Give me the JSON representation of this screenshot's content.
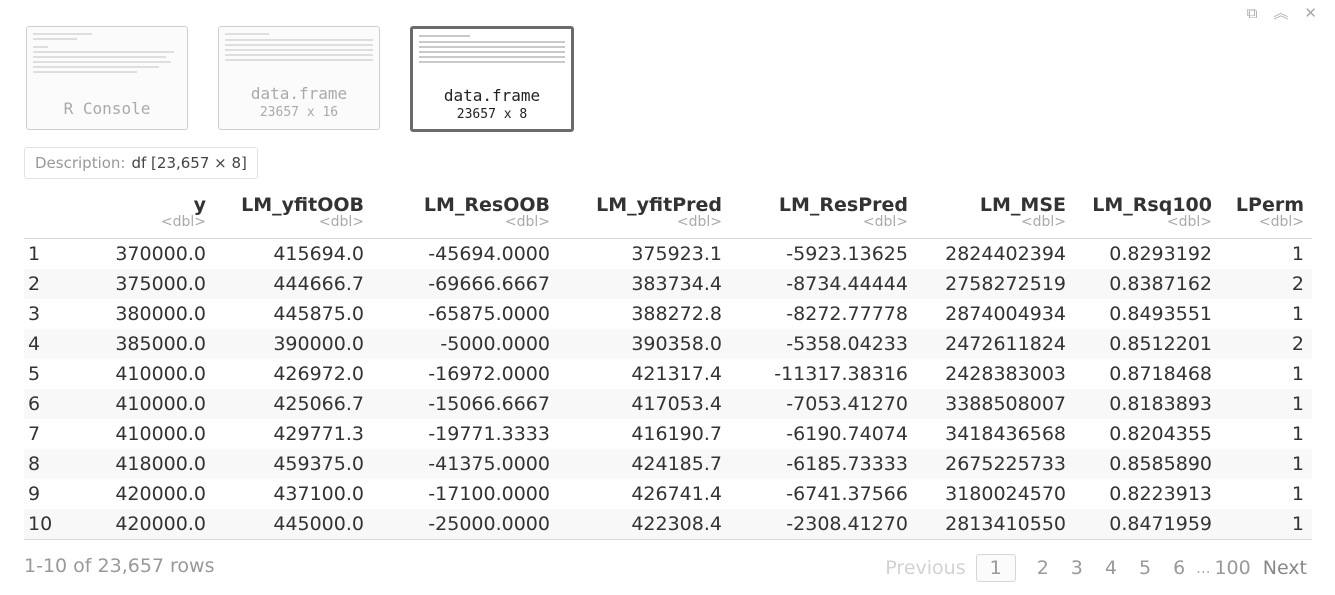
{
  "window_icons": {
    "popout": "⧉",
    "collapse": "︽",
    "close": "✕"
  },
  "thumbnails": [
    {
      "title": "R Console",
      "subtitle": ""
    },
    {
      "title": "data.frame",
      "subtitle": "23657 x 16"
    },
    {
      "title": "data.frame",
      "subtitle": "23657 x 8"
    }
  ],
  "description": {
    "label": "Description:",
    "value": "df [23,657 × 8]"
  },
  "table": {
    "columns": [
      {
        "name": "",
        "type": ""
      },
      {
        "name": "y",
        "type": "<dbl>"
      },
      {
        "name": "LM_yfitOOB",
        "type": "<dbl>"
      },
      {
        "name": "LM_ResOOB",
        "type": "<dbl>"
      },
      {
        "name": "LM_yfitPred",
        "type": "<dbl>"
      },
      {
        "name": "LM_ResPred",
        "type": "<dbl>"
      },
      {
        "name": "LM_MSE",
        "type": "<dbl>"
      },
      {
        "name": "LM_Rsq100",
        "type": "<dbl>"
      },
      {
        "name": "LPerm",
        "type": "<dbl>"
      }
    ],
    "rows": [
      [
        "1",
        "370000.0",
        "415694.0",
        "-45694.0000",
        "375923.1",
        "-5923.13625",
        "2824402394",
        "0.8293192",
        "1"
      ],
      [
        "2",
        "375000.0",
        "444666.7",
        "-69666.6667",
        "383734.4",
        "-8734.44444",
        "2758272519",
        "0.8387162",
        "2"
      ],
      [
        "3",
        "380000.0",
        "445875.0",
        "-65875.0000",
        "388272.8",
        "-8272.77778",
        "2874004934",
        "0.8493551",
        "1"
      ],
      [
        "4",
        "385000.0",
        "390000.0",
        "-5000.0000",
        "390358.0",
        "-5358.04233",
        "2472611824",
        "0.8512201",
        "2"
      ],
      [
        "5",
        "410000.0",
        "426972.0",
        "-16972.0000",
        "421317.4",
        "-11317.38316",
        "2428383003",
        "0.8718468",
        "1"
      ],
      [
        "6",
        "410000.0",
        "425066.7",
        "-15066.6667",
        "417053.4",
        "-7053.41270",
        "3388508007",
        "0.8183893",
        "1"
      ],
      [
        "7",
        "410000.0",
        "429771.3",
        "-19771.3333",
        "416190.7",
        "-6190.74074",
        "3418436568",
        "0.8204355",
        "1"
      ],
      [
        "8",
        "418000.0",
        "459375.0",
        "-41375.0000",
        "424185.7",
        "-6185.73333",
        "2675225733",
        "0.8585890",
        "1"
      ],
      [
        "9",
        "420000.0",
        "437100.0",
        "-17100.0000",
        "426741.4",
        "-6741.37566",
        "3180024570",
        "0.8223913",
        "1"
      ],
      [
        "10",
        "420000.0",
        "445000.0",
        "-25000.0000",
        "422308.4",
        "-2308.41270",
        "2813410550",
        "0.8471959",
        "1"
      ]
    ]
  },
  "footer": {
    "row_info": "1-10 of 23,657 rows",
    "previous": "Previous",
    "pages": [
      "1",
      "2",
      "3",
      "4",
      "5",
      "6"
    ],
    "ellipsis": "...",
    "last_page": "100",
    "next": "Next"
  }
}
